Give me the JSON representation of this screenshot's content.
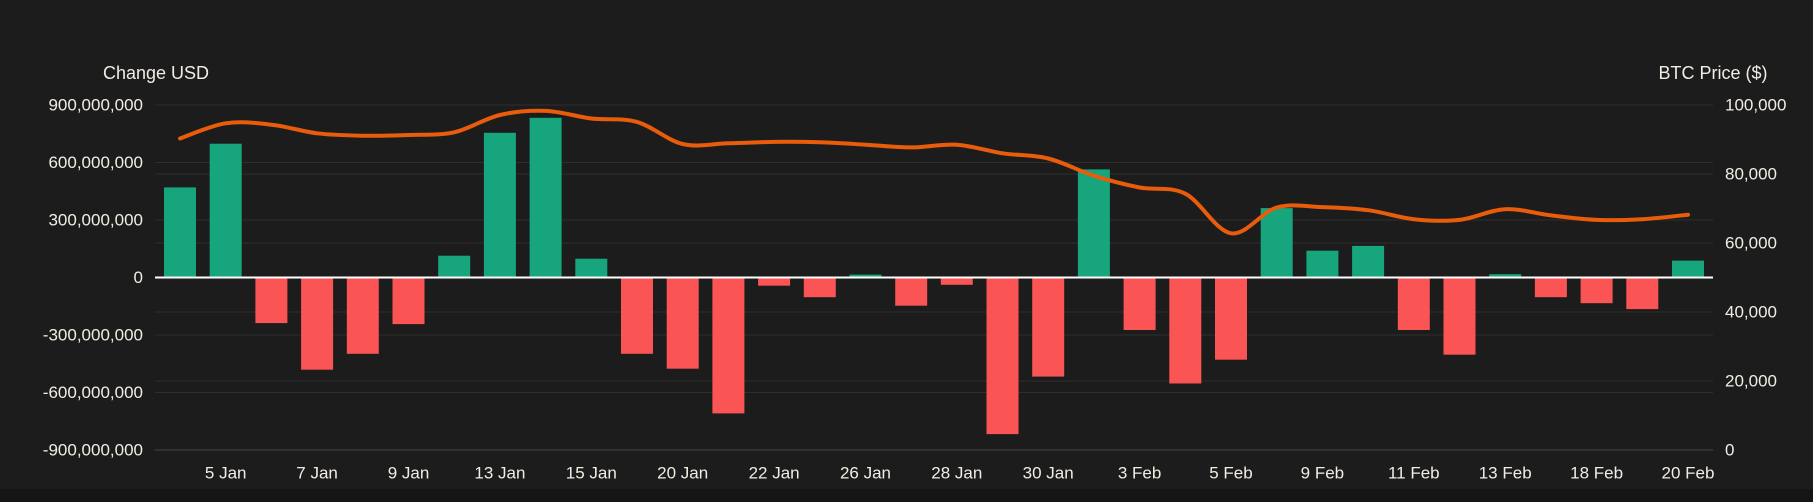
{
  "chart_data": {
    "type": "bar+line",
    "title": "",
    "legend": "none",
    "grid": "horizontal gridlines for both y-axes, no vertical gridlines",
    "left_axis": {
      "title": "Change USD",
      "tick_labels": [
        "900,000,000",
        "600,000,000",
        "300,000,000",
        "0",
        "-300,000,000",
        "-600,000,000",
        "-900,000,000"
      ],
      "tick_values_usd_millions": [
        900,
        600,
        300,
        0,
        -300,
        -600,
        -900
      ],
      "range_usd_millions": [
        -900,
        900
      ]
    },
    "right_axis": {
      "title": "BTC Price ($)",
      "tick_labels": [
        "100,000",
        "80,000",
        "60,000",
        "40,000",
        "20,000",
        "0"
      ],
      "tick_values_usd": [
        100000,
        80000,
        60000,
        40000,
        20000,
        0
      ],
      "range_usd": [
        0,
        100000
      ]
    },
    "x_tick_labels": [
      "5 Jan",
      "7 Jan",
      "9 Jan",
      "13 Jan",
      "15 Jan",
      "20 Jan",
      "22 Jan",
      "26 Jan",
      "28 Jan",
      "30 Jan",
      "3 Feb",
      "5 Feb",
      "9 Feb",
      "11 Feb",
      "13 Feb",
      "18 Feb",
      "20 Feb"
    ],
    "x_tick_placement": "one label under every second bar, starting at bar 2 of 34",
    "series": [
      {
        "name": "Change USD",
        "type": "bar",
        "unit": "USD millions",
        "values": [
          470,
          698,
          -238,
          -481,
          -398,
          -243,
          114,
          755,
          833,
          98,
          -398,
          -476,
          -709,
          -43,
          -103,
          15,
          -147,
          -38,
          -817,
          -517,
          564,
          -274,
          -553,
          -429,
          362,
          140,
          165,
          -274,
          -403,
          17,
          -103,
          -134,
          -165,
          88
        ]
      },
      {
        "name": "BTC Price ($)",
        "type": "line",
        "unit": "USD",
        "values": [
          90300,
          94700,
          94300,
          91800,
          91100,
          91300,
          92100,
          97100,
          98300,
          96100,
          95100,
          88700,
          88900,
          89300,
          89200,
          88500,
          87700,
          88500,
          86000,
          84500,
          79500,
          76100,
          74300,
          62800,
          70300,
          70400,
          69500,
          66900,
          66700,
          69800,
          68000,
          66700,
          66900,
          68200
        ]
      }
    ],
    "colors": {
      "bar_positive": "#16a57c",
      "bar_negative": "#fa5454",
      "price_line": "#e85c0c",
      "zero_line": "#ffffff",
      "gridline": "#2e2e2e",
      "baseline_bottom": "#454545",
      "text": "#f1ede4",
      "background": "#1c1c1c"
    }
  }
}
